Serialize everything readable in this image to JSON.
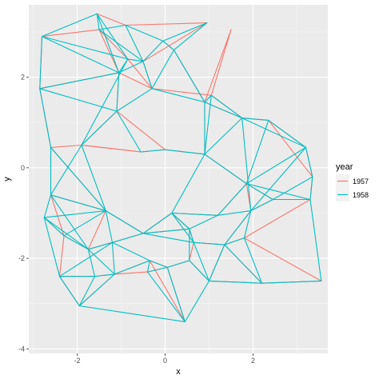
{
  "chart_data": {
    "type": "line",
    "title": "",
    "xlabel": "x",
    "ylabel": "y",
    "xlim": [
      -3.1,
      3.7
    ],
    "ylim": [
      -4.1,
      3.6
    ],
    "x_ticks": [
      -2,
      0,
      2
    ],
    "y_ticks": [
      -4,
      -2,
      0,
      2
    ],
    "grid": true,
    "legend": {
      "title": "year",
      "position": "right",
      "entries": [
        {
          "label": "1957",
          "color": "#F8766D"
        },
        {
          "label": "1958",
          "color": "#00BFC4"
        }
      ]
    },
    "nodes": [
      [
        -2.85,
        1.75
      ],
      [
        -2.8,
        2.9
      ],
      [
        -2.6,
        0.45
      ],
      [
        -2.6,
        -0.6
      ],
      [
        -2.75,
        -1.1
      ],
      [
        -2.3,
        -1.5
      ],
      [
        -2.4,
        -2.4
      ],
      [
        -1.95,
        -3.05
      ],
      [
        -1.9,
        0.5
      ],
      [
        -1.75,
        -1.8
      ],
      [
        -1.55,
        3.4
      ],
      [
        -1.5,
        3.05
      ],
      [
        -1.35,
        -0.95
      ],
      [
        -1.2,
        -1.65
      ],
      [
        -1.15,
        -2.35
      ],
      [
        -1.05,
        2.1
      ],
      [
        -1.1,
        1.25
      ],
      [
        -0.85,
        2.4
      ],
      [
        -0.9,
        3.15
      ],
      [
        -0.55,
        0.35
      ],
      [
        -0.5,
        2.35
      ],
      [
        -0.5,
        -1.45
      ],
      [
        -0.35,
        -2.05
      ],
      [
        -0.3,
        1.75
      ],
      [
        -0.05,
        2.8
      ],
      [
        0.0,
        0.4
      ],
      [
        0.05,
        -2.2
      ],
      [
        0.15,
        -1.0
      ],
      [
        0.2,
        2.6
      ],
      [
        0.45,
        -3.4
      ],
      [
        0.55,
        -1.35
      ],
      [
        0.55,
        -2.05
      ],
      [
        0.65,
        -1.65
      ],
      [
        0.95,
        3.2
      ],
      [
        0.9,
        1.45
      ],
      [
        0.9,
        0.3
      ],
      [
        1.0,
        -2.5
      ],
      [
        1.05,
        1.6
      ],
      [
        1.2,
        -1.05
      ],
      [
        1.35,
        -1.7
      ],
      [
        1.5,
        3.05
      ],
      [
        1.75,
        1.1
      ],
      [
        1.85,
        -0.35
      ],
      [
        1.8,
        -1.55
      ],
      [
        1.95,
        -0.95
      ],
      [
        2.2,
        -2.55
      ],
      [
        2.35,
        1.05
      ],
      [
        2.45,
        -0.7
      ],
      [
        3.2,
        0.45
      ],
      [
        3.3,
        -0.7
      ],
      [
        3.35,
        -0.2
      ],
      [
        3.55,
        -2.5
      ],
      [
        -1.6,
        -2.4
      ],
      [
        -0.4,
        -2.3
      ]
    ],
    "series": [
      {
        "name": "1957",
        "color": "#F8766D",
        "edges": [
          [
            0,
            2
          ],
          [
            2,
            8
          ],
          [
            8,
            16
          ],
          [
            16,
            15
          ],
          [
            15,
            0
          ],
          [
            1,
            11
          ],
          [
            11,
            15
          ],
          [
            10,
            18
          ],
          [
            18,
            33
          ],
          [
            33,
            20
          ],
          [
            20,
            23
          ],
          [
            23,
            37
          ],
          [
            37,
            41
          ],
          [
            41,
            46
          ],
          [
            46,
            48
          ],
          [
            48,
            50
          ],
          [
            50,
            49
          ],
          [
            49,
            47
          ],
          [
            47,
            42
          ],
          [
            42,
            38
          ],
          [
            38,
            27
          ],
          [
            27,
            21
          ],
          [
            21,
            12
          ],
          [
            12,
            3
          ],
          [
            3,
            2
          ],
          [
            4,
            5
          ],
          [
            5,
            6
          ],
          [
            6,
            7
          ],
          [
            7,
            14
          ],
          [
            14,
            22
          ],
          [
            22,
            26
          ],
          [
            26,
            31
          ],
          [
            31,
            36
          ],
          [
            36,
            45
          ],
          [
            45,
            51
          ],
          [
            51,
            43
          ],
          [
            43,
            39
          ],
          [
            39,
            32
          ],
          [
            32,
            30
          ],
          [
            30,
            27
          ],
          [
            8,
            19
          ],
          [
            19,
            25
          ],
          [
            25,
            35
          ],
          [
            35,
            34
          ],
          [
            34,
            37
          ],
          [
            40,
            34
          ],
          [
            40,
            37
          ],
          [
            24,
            28
          ],
          [
            28,
            34
          ],
          [
            17,
            23
          ],
          [
            9,
            13
          ],
          [
            13,
            21
          ],
          [
            21,
            30
          ],
          [
            6,
            52
          ],
          [
            52,
            14
          ],
          [
            14,
            53
          ],
          [
            53,
            26
          ],
          [
            36,
            39
          ],
          [
            39,
            45
          ],
          [
            44,
            47
          ],
          [
            44,
            39
          ],
          [
            2,
            12
          ],
          [
            16,
            25
          ],
          [
            12,
            9
          ],
          [
            5,
            9
          ],
          [
            43,
            49
          ],
          [
            46,
            50
          ],
          [
            42,
            44
          ],
          [
            35,
            42
          ],
          [
            27,
            30
          ],
          [
            3,
            5
          ],
          [
            22,
            29
          ],
          [
            29,
            26
          ],
          [
            31,
            32
          ],
          [
            0,
            1
          ],
          [
            19,
            8
          ],
          [
            15,
            23
          ],
          [
            11,
            17
          ],
          [
            34,
            41
          ]
        ]
      },
      {
        "name": "1958",
        "color": "#00BFC4",
        "edges": [
          [
            0,
            1
          ],
          [
            1,
            10
          ],
          [
            10,
            11
          ],
          [
            11,
            18
          ],
          [
            18,
            24
          ],
          [
            24,
            28
          ],
          [
            28,
            34
          ],
          [
            34,
            37
          ],
          [
            37,
            41
          ],
          [
            41,
            46
          ],
          [
            46,
            48
          ],
          [
            48,
            50
          ],
          [
            50,
            49
          ],
          [
            49,
            51
          ],
          [
            51,
            45
          ],
          [
            45,
            36
          ],
          [
            36,
            29
          ],
          [
            29,
            7
          ],
          [
            7,
            6
          ],
          [
            6,
            4
          ],
          [
            4,
            3
          ],
          [
            3,
            2
          ],
          [
            2,
            0
          ],
          [
            0,
            15
          ],
          [
            15,
            17
          ],
          [
            17,
            20
          ],
          [
            20,
            23
          ],
          [
            23,
            16
          ],
          [
            16,
            8
          ],
          [
            8,
            3
          ],
          [
            1,
            15
          ],
          [
            10,
            17
          ],
          [
            11,
            20
          ],
          [
            18,
            20
          ],
          [
            15,
            16
          ],
          [
            16,
            19
          ],
          [
            19,
            25
          ],
          [
            25,
            35
          ],
          [
            35,
            41
          ],
          [
            35,
            42
          ],
          [
            42,
            47
          ],
          [
            47,
            49
          ],
          [
            42,
            38
          ],
          [
            38,
            27
          ],
          [
            27,
            21
          ],
          [
            21,
            13
          ],
          [
            13,
            9
          ],
          [
            9,
            5
          ],
          [
            5,
            4
          ],
          [
            4,
            12
          ],
          [
            12,
            3
          ],
          [
            12,
            21
          ],
          [
            21,
            30
          ],
          [
            30,
            32
          ],
          [
            32,
            39
          ],
          [
            39,
            43
          ],
          [
            43,
            44
          ],
          [
            44,
            47
          ],
          [
            43,
            45
          ],
          [
            39,
            36
          ],
          [
            36,
            31
          ],
          [
            31,
            26
          ],
          [
            26,
            22
          ],
          [
            22,
            14
          ],
          [
            14,
            52
          ],
          [
            52,
            6
          ],
          [
            52,
            9
          ],
          [
            9,
            14
          ],
          [
            14,
            13
          ],
          [
            13,
            22
          ],
          [
            22,
            53
          ],
          [
            53,
            26
          ],
          [
            26,
            29
          ],
          [
            29,
            53
          ],
          [
            7,
            52
          ],
          [
            31,
            30
          ],
          [
            30,
            27
          ],
          [
            27,
            35
          ],
          [
            35,
            34
          ],
          [
            34,
            41
          ],
          [
            41,
            44
          ],
          [
            44,
            48
          ],
          [
            48,
            42
          ],
          [
            46,
            42
          ],
          [
            37,
            35
          ],
          [
            23,
            34
          ],
          [
            20,
            24
          ],
          [
            24,
            33
          ],
          [
            33,
            28
          ],
          [
            17,
            8
          ],
          [
            8,
            12
          ],
          [
            2,
            12
          ],
          [
            5,
            12
          ],
          [
            4,
            9
          ],
          [
            3,
            9
          ],
          [
            0,
            16
          ],
          [
            1,
            17
          ],
          [
            10,
            15
          ],
          [
            15,
            20
          ],
          [
            23,
            28
          ],
          [
            38,
            44
          ],
          [
            38,
            30
          ],
          [
            32,
            36
          ],
          [
            39,
            44
          ],
          [
            45,
            39
          ],
          [
            50,
            47
          ],
          [
            49,
            42
          ],
          [
            41,
            48
          ],
          [
            21,
            32
          ],
          [
            27,
            32
          ],
          [
            13,
            6
          ],
          [
            14,
            7
          ],
          [
            12,
            13
          ]
        ]
      }
    ]
  }
}
